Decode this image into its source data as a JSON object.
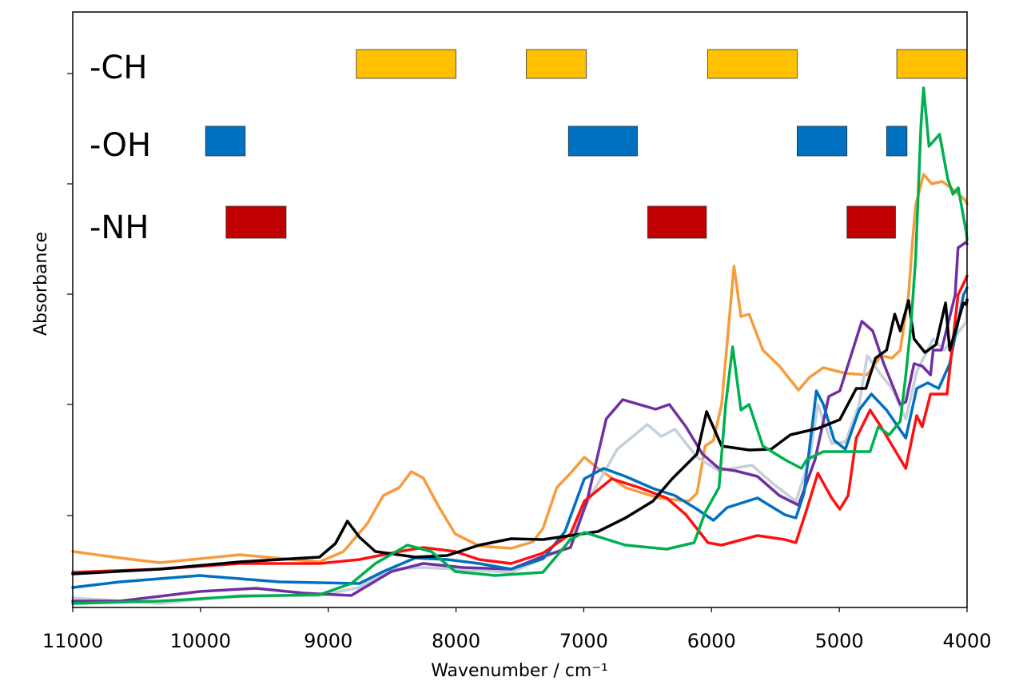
{
  "chart_data": {
    "type": "line",
    "title": "",
    "xlabel": "Wavenumber / cm⁻¹",
    "ylabel": "Absorbance",
    "xlim": [
      11000,
      4000
    ],
    "x_reversed": true,
    "xticks": [
      11000,
      10000,
      9000,
      8000,
      7000,
      6000,
      5000,
      4000
    ],
    "xtick_labels": [
      "11000",
      "10000",
      "9000",
      "8000",
      "7000",
      "6000",
      "5000",
      "4000"
    ],
    "ylim": [
      0,
      7.45
    ],
    "yticks": [
      1.15,
      2.54,
      3.92,
      5.3,
      6.68
    ],
    "ytick_labels_shown": false,
    "grid": false,
    "legend": "none",
    "band_groups": [
      {
        "label": "-CH",
        "color": "#FFC000",
        "ranges": [
          [
            8780,
            8000
          ],
          [
            7450,
            6980
          ],
          [
            6030,
            5330
          ],
          [
            4550,
            4000
          ]
        ]
      },
      {
        "label": "-OH",
        "color": "#0070C0",
        "ranges": [
          [
            9960,
            9650
          ],
          [
            7120,
            6580
          ],
          [
            5330,
            4940
          ],
          [
            4630,
            4470
          ]
        ]
      },
      {
        "label": "-NH",
        "color": "#C00000",
        "ranges": [
          [
            9800,
            9330
          ],
          [
            6500,
            6040
          ],
          [
            4940,
            4560
          ]
        ]
      }
    ],
    "series": [
      {
        "color": "#F79B3C",
        "points": [
          [
            11000,
            0.7
          ],
          [
            10631,
            0.62
          ],
          [
            10319,
            0.56
          ],
          [
            9694,
            0.66
          ],
          [
            9069,
            0.57
          ],
          [
            8881,
            0.7
          ],
          [
            8694,
            1.05
          ],
          [
            8569,
            1.4
          ],
          [
            8444,
            1.5
          ],
          [
            8350,
            1.7
          ],
          [
            8256,
            1.62
          ],
          [
            8131,
            1.25
          ],
          [
            8006,
            0.92
          ],
          [
            7819,
            0.77
          ],
          [
            7569,
            0.74
          ],
          [
            7400,
            0.82
          ],
          [
            7319,
            0.99
          ],
          [
            7211,
            1.5
          ],
          [
            7104,
            1.68
          ],
          [
            6996,
            1.88
          ],
          [
            6889,
            1.74
          ],
          [
            6674,
            1.5
          ],
          [
            6416,
            1.37
          ],
          [
            6179,
            1.33
          ],
          [
            6114,
            1.43
          ],
          [
            6050,
            2.02
          ],
          [
            5985,
            2.09
          ],
          [
            5921,
            2.54
          ],
          [
            5824,
            4.27
          ],
          [
            5770,
            3.64
          ],
          [
            5706,
            3.67
          ],
          [
            5598,
            3.22
          ],
          [
            5469,
            3.02
          ],
          [
            5319,
            2.72
          ],
          [
            5233,
            2.88
          ],
          [
            5125,
            3.0
          ],
          [
            4953,
            2.93
          ],
          [
            4781,
            2.91
          ],
          [
            4673,
            3.15
          ],
          [
            4587,
            3.12
          ],
          [
            4523,
            3.22
          ],
          [
            4458,
            3.91
          ],
          [
            4426,
            4.6
          ],
          [
            4402,
            5.03
          ],
          [
            4340,
            5.42
          ],
          [
            4277,
            5.3
          ],
          [
            4194,
            5.33
          ],
          [
            4111,
            5.23
          ],
          [
            4017,
            5.1
          ],
          [
            4000,
            5.05
          ]
        ]
      },
      {
        "color": "#C5D0DA",
        "points": [
          [
            11000,
            0.12
          ],
          [
            10319,
            0.05
          ],
          [
            9694,
            0.15
          ],
          [
            9069,
            0.15
          ],
          [
            8756,
            0.25
          ],
          [
            8506,
            0.48
          ],
          [
            8256,
            0.5
          ],
          [
            8006,
            0.48
          ],
          [
            7569,
            0.44
          ],
          [
            7319,
            0.61
          ],
          [
            7147,
            0.75
          ],
          [
            6932,
            1.43
          ],
          [
            6738,
            1.98
          ],
          [
            6502,
            2.29
          ],
          [
            6394,
            2.14
          ],
          [
            6287,
            2.23
          ],
          [
            6114,
            1.88
          ],
          [
            5942,
            1.71
          ],
          [
            5684,
            1.78
          ],
          [
            5512,
            1.54
          ],
          [
            5340,
            1.33
          ],
          [
            5233,
            1.85
          ],
          [
            5168,
            2.54
          ],
          [
            5060,
            2.05
          ],
          [
            4953,
            2.07
          ],
          [
            4845,
            2.54
          ],
          [
            4781,
            3.15
          ],
          [
            4673,
            2.91
          ],
          [
            4587,
            2.74
          ],
          [
            4480,
            2.36
          ],
          [
            4394,
            2.95
          ],
          [
            4265,
            3.36
          ],
          [
            4179,
            3.22
          ],
          [
            4007,
            3.57
          ],
          [
            4000,
            3.85
          ]
        ]
      },
      {
        "color": "#7030A0",
        "points": [
          [
            11000,
            0.08
          ],
          [
            10631,
            0.08
          ],
          [
            10006,
            0.2
          ],
          [
            9569,
            0.24
          ],
          [
            9194,
            0.18
          ],
          [
            8819,
            0.15
          ],
          [
            8506,
            0.45
          ],
          [
            8256,
            0.55
          ],
          [
            7944,
            0.5
          ],
          [
            7569,
            0.48
          ],
          [
            7319,
            0.64
          ],
          [
            7104,
            0.75
          ],
          [
            6975,
            1.33
          ],
          [
            6824,
            2.36
          ],
          [
            6695,
            2.6
          ],
          [
            6437,
            2.48
          ],
          [
            6330,
            2.54
          ],
          [
            6200,
            2.26
          ],
          [
            6071,
            1.92
          ],
          [
            5942,
            1.74
          ],
          [
            5813,
            1.71
          ],
          [
            5641,
            1.64
          ],
          [
            5469,
            1.4
          ],
          [
            5319,
            1.28
          ],
          [
            5190,
            1.85
          ],
          [
            5082,
            2.64
          ],
          [
            4996,
            2.71
          ],
          [
            4824,
            3.58
          ],
          [
            4738,
            3.46
          ],
          [
            4652,
            3.05
          ],
          [
            4523,
            2.54
          ],
          [
            4480,
            2.57
          ],
          [
            4415,
            3.05
          ],
          [
            4351,
            3.02
          ],
          [
            4286,
            2.91
          ],
          [
            4265,
            3.22
          ],
          [
            4200,
            3.22
          ],
          [
            4093,
            3.91
          ],
          [
            4071,
            4.5
          ],
          [
            4007,
            4.57
          ],
          [
            4000,
            4.55
          ]
        ]
      },
      {
        "color": "#0070C0",
        "points": [
          [
            11000,
            0.25
          ],
          [
            10631,
            0.32
          ],
          [
            10006,
            0.4
          ],
          [
            9381,
            0.32
          ],
          [
            8756,
            0.3
          ],
          [
            8569,
            0.45
          ],
          [
            8319,
            0.62
          ],
          [
            8069,
            0.6
          ],
          [
            7819,
            0.55
          ],
          [
            7569,
            0.48
          ],
          [
            7319,
            0.61
          ],
          [
            7147,
            0.95
          ],
          [
            6996,
            1.61
          ],
          [
            6846,
            1.74
          ],
          [
            6674,
            1.64
          ],
          [
            6459,
            1.49
          ],
          [
            6287,
            1.4
          ],
          [
            6114,
            1.23
          ],
          [
            5985,
            1.09
          ],
          [
            5878,
            1.25
          ],
          [
            5641,
            1.37
          ],
          [
            5426,
            1.16
          ],
          [
            5340,
            1.12
          ],
          [
            5276,
            1.43
          ],
          [
            5179,
            2.71
          ],
          [
            5125,
            2.54
          ],
          [
            5039,
            2.09
          ],
          [
            4953,
            1.98
          ],
          [
            4845,
            2.47
          ],
          [
            4749,
            2.67
          ],
          [
            4630,
            2.47
          ],
          [
            4480,
            2.12
          ],
          [
            4394,
            2.74
          ],
          [
            4308,
            2.81
          ],
          [
            4222,
            2.74
          ],
          [
            4136,
            3.05
          ],
          [
            4028,
            3.91
          ],
          [
            4000,
            4.0
          ]
        ]
      },
      {
        "color": "#FF1010",
        "points": [
          [
            11000,
            0.44
          ],
          [
            10319,
            0.48
          ],
          [
            9694,
            0.55
          ],
          [
            9069,
            0.55
          ],
          [
            8756,
            0.6
          ],
          [
            8444,
            0.7
          ],
          [
            8256,
            0.75
          ],
          [
            8006,
            0.7
          ],
          [
            7819,
            0.6
          ],
          [
            7569,
            0.55
          ],
          [
            7319,
            0.68
          ],
          [
            7104,
            0.92
          ],
          [
            6996,
            1.33
          ],
          [
            6781,
            1.61
          ],
          [
            6566,
            1.5
          ],
          [
            6351,
            1.37
          ],
          [
            6200,
            1.16
          ],
          [
            6028,
            0.81
          ],
          [
            5921,
            0.78
          ],
          [
            5641,
            0.9
          ],
          [
            5426,
            0.85
          ],
          [
            5340,
            0.81
          ],
          [
            5254,
            1.23
          ],
          [
            5168,
            1.68
          ],
          [
            5060,
            1.37
          ],
          [
            4996,
            1.23
          ],
          [
            4931,
            1.4
          ],
          [
            4867,
            2.12
          ],
          [
            4759,
            2.47
          ],
          [
            4673,
            2.26
          ],
          [
            4480,
            1.74
          ],
          [
            4394,
            2.4
          ],
          [
            4351,
            2.26
          ],
          [
            4286,
            2.67
          ],
          [
            4157,
            2.67
          ],
          [
            4071,
            3.91
          ],
          [
            4007,
            4.12
          ],
          [
            4000,
            4.15
          ]
        ]
      },
      {
        "color": "#000000",
        "points": [
          [
            11000,
            0.42
          ],
          [
            10319,
            0.48
          ],
          [
            9694,
            0.57
          ],
          [
            9069,
            0.63
          ],
          [
            8944,
            0.8
          ],
          [
            8850,
            1.08
          ],
          [
            8756,
            0.88
          ],
          [
            8631,
            0.7
          ],
          [
            8319,
            0.63
          ],
          [
            8069,
            0.65
          ],
          [
            7819,
            0.78
          ],
          [
            7569,
            0.86
          ],
          [
            7319,
            0.85
          ],
          [
            7104,
            0.9
          ],
          [
            6889,
            0.95
          ],
          [
            6674,
            1.12
          ],
          [
            6459,
            1.33
          ],
          [
            6308,
            1.61
          ],
          [
            6114,
            1.92
          ],
          [
            6039,
            2.45
          ],
          [
            5921,
            2.02
          ],
          [
            5706,
            1.97
          ],
          [
            5534,
            1.98
          ],
          [
            5383,
            2.16
          ],
          [
            5168,
            2.24
          ],
          [
            4996,
            2.35
          ],
          [
            4867,
            2.74
          ],
          [
            4792,
            2.74
          ],
          [
            4716,
            3.12
          ],
          [
            4630,
            3.22
          ],
          [
            4566,
            3.67
          ],
          [
            4523,
            3.46
          ],
          [
            4458,
            3.84
          ],
          [
            4415,
            3.36
          ],
          [
            4329,
            3.19
          ],
          [
            4243,
            3.29
          ],
          [
            4168,
            3.81
          ],
          [
            4136,
            3.22
          ],
          [
            4028,
            3.81
          ],
          [
            4007,
            3.79
          ],
          [
            4000,
            3.85
          ]
        ]
      },
      {
        "color": "#00B050",
        "points": [
          [
            11000,
            0.05
          ],
          [
            10319,
            0.08
          ],
          [
            9694,
            0.14
          ],
          [
            9069,
            0.16
          ],
          [
            8819,
            0.3
          ],
          [
            8631,
            0.55
          ],
          [
            8381,
            0.78
          ],
          [
            8194,
            0.7
          ],
          [
            8006,
            0.45
          ],
          [
            7694,
            0.4
          ],
          [
            7319,
            0.44
          ],
          [
            7104,
            0.85
          ],
          [
            6996,
            0.94
          ],
          [
            6674,
            0.78
          ],
          [
            6351,
            0.73
          ],
          [
            6136,
            0.81
          ],
          [
            6050,
            1.19
          ],
          [
            5942,
            1.5
          ],
          [
            5889,
            2.54
          ],
          [
            5835,
            3.26
          ],
          [
            5770,
            2.47
          ],
          [
            5706,
            2.54
          ],
          [
            5598,
            2.02
          ],
          [
            5426,
            1.85
          ],
          [
            5297,
            1.74
          ],
          [
            5254,
            1.85
          ],
          [
            5125,
            1.95
          ],
          [
            4759,
            1.95
          ],
          [
            4695,
            2.26
          ],
          [
            4609,
            2.16
          ],
          [
            4523,
            2.33
          ],
          [
            4480,
            2.9
          ],
          [
            4437,
            3.57
          ],
          [
            4402,
            4.37
          ],
          [
            4361,
            6.03
          ],
          [
            4340,
            6.5
          ],
          [
            4298,
            5.77
          ],
          [
            4215,
            5.92
          ],
          [
            4152,
            5.37
          ],
          [
            4111,
            5.17
          ],
          [
            4069,
            5.25
          ],
          [
            4007,
            4.7
          ],
          [
            4000,
            4.6
          ]
        ]
      }
    ]
  }
}
